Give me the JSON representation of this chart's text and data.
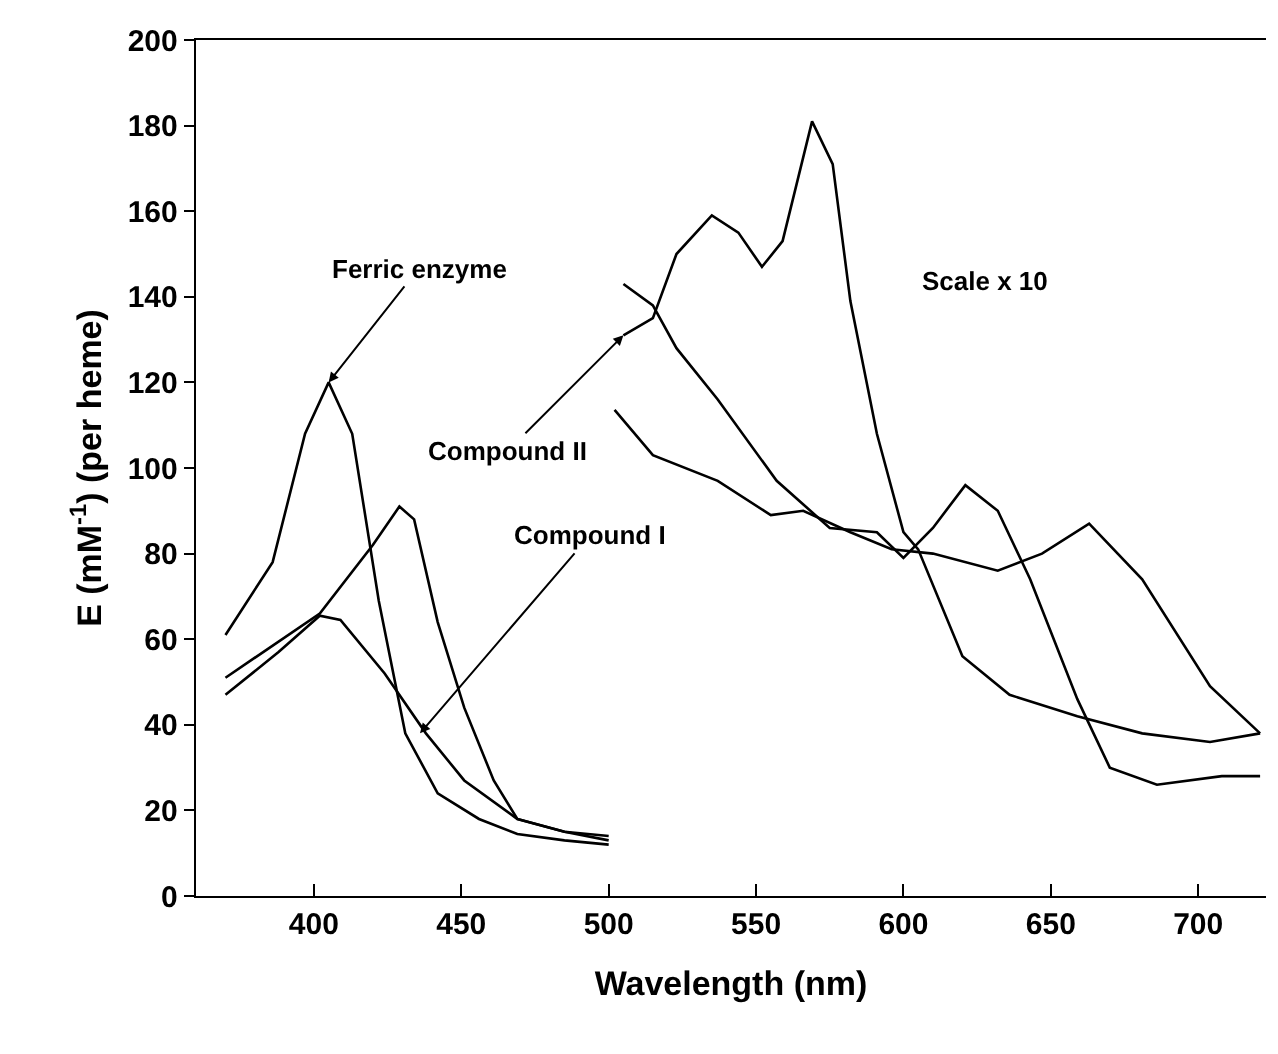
{
  "chart_data": {
    "type": "line",
    "xlabel": "Wavelength (nm)",
    "ylabel": "E (mM$^{-1}$) (per heme)",
    "xlim": [
      360,
      723
    ],
    "xticks": [
      400,
      450,
      500,
      550,
      600,
      650,
      700
    ],
    "ylim": [
      0,
      200
    ],
    "yticks": [
      0,
      20,
      40,
      60,
      80,
      100,
      120,
      140,
      160,
      180,
      200
    ],
    "marker": "none",
    "line_style": "solid",
    "series": [
      {
        "color": "#000000",
        "x": [
          370,
          386,
          397,
          405,
          413,
          422,
          431,
          442,
          456,
          469,
          485,
          500
        ],
        "values": [
          61,
          78,
          108,
          120,
          108,
          69,
          38,
          24,
          18,
          14.5,
          13,
          12
        ]
      },
      {
        "color": "#000000",
        "x": [
          505,
          515,
          523,
          537,
          557,
          575,
          591,
          600,
          610,
          621,
          632,
          643,
          659,
          670,
          686,
          708,
          721
        ],
        "values": [
          143,
          138,
          128,
          116,
          97,
          86,
          85,
          79,
          86,
          96,
          90,
          74,
          46,
          30,
          26,
          28,
          28
        ]
      },
      {
        "color": "#000000",
        "x": [
          370,
          402,
          420,
          429,
          434,
          442,
          451,
          461,
          469,
          485,
          500
        ],
        "values": [
          51,
          66,
          82,
          91,
          88,
          64,
          44,
          27,
          18,
          15,
          14
        ]
      },
      {
        "color": "#000000",
        "x": [
          505,
          515,
          523,
          535,
          544,
          552,
          559,
          569,
          576,
          582,
          591,
          600,
          605,
          620,
          636,
          659,
          681,
          704,
          721
        ],
        "values": [
          131,
          135,
          150,
          159,
          155,
          147,
          153,
          181,
          171,
          139,
          108,
          85,
          81,
          56,
          47,
          42,
          38,
          36,
          38
        ]
      },
      {
        "color": "#000000",
        "x": [
          370,
          388,
          402,
          409,
          424,
          438,
          451,
          469,
          485,
          500
        ],
        "values": [
          47,
          57,
          65.5,
          64.5,
          52,
          38,
          27,
          18,
          15,
          13
        ]
      },
      {
        "color": "#000000",
        "x": [
          502,
          515,
          537,
          555,
          566,
          582,
          596,
          610,
          632,
          647,
          663,
          681,
          704,
          721
        ],
        "values": [
          113.6,
          103,
          97,
          89,
          90,
          85,
          81,
          80,
          76,
          80,
          87,
          74,
          49,
          38
        ]
      }
    ],
    "annotations": [
      {
        "text": "Ferric enzyme",
        "x": 405,
        "y": 120
      },
      {
        "text": "Compound II",
        "x": 505,
        "y": 131
      },
      {
        "text": "Compound I",
        "x": 436,
        "y": 38
      },
      "Scale x 10"
    ]
  }
}
